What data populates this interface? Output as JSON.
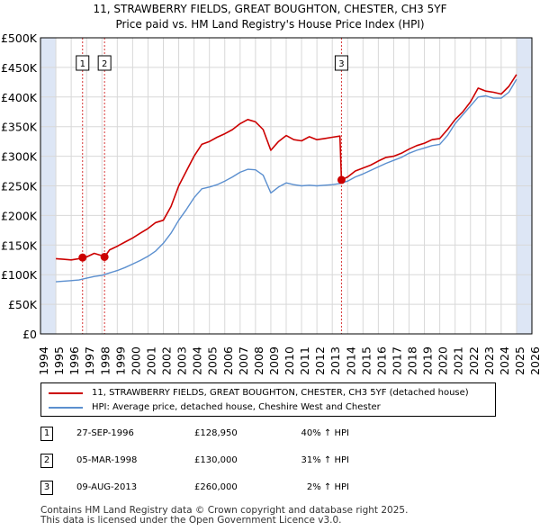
{
  "title_line1": "11, STRAWBERRY FIELDS, GREAT BOUGHTON, CHESTER, CH3 5YF",
  "title_line2": "Price paid vs. HM Land Registry's House Price Index (HPI)",
  "legend": {
    "property_label": "11, STRAWBERRY FIELDS, GREAT BOUGHTON, CHESTER, CH3 5YF (detached house)",
    "hpi_label": "HPI: Average price, detached house, Cheshire West and Chester"
  },
  "sales": [
    {
      "num": "1",
      "date": "27-SEP-1996",
      "price": "£128,950",
      "hpi": "40% ↑ HPI"
    },
    {
      "num": "2",
      "date": "05-MAR-1998",
      "price": "£130,000",
      "hpi": "31% ↑ HPI"
    },
    {
      "num": "3",
      "date": "09-AUG-2013",
      "price": "£260,000",
      "hpi": "2% ↑ HPI"
    }
  ],
  "footer_line1": "Contains HM Land Registry data © Crown copyright and database right 2025.",
  "footer_line2": "This data is licensed under the Open Government Licence v3.0.",
  "colors": {
    "property": "#cc0000",
    "hpi": "#5b8fcf",
    "shade": "#dde6f5",
    "grid": "#d8d8d8",
    "marker_line": "#cc0000"
  },
  "chart_data": {
    "type": "line",
    "xlim": [
      1994,
      2026
    ],
    "ylim": [
      0,
      500000
    ],
    "yticks": [
      0,
      50000,
      100000,
      150000,
      200000,
      250000,
      300000,
      350000,
      400000,
      450000,
      500000
    ],
    "ytick_labels": [
      "£0",
      "£50K",
      "£100K",
      "£150K",
      "£200K",
      "£250K",
      "£300K",
      "£350K",
      "£400K",
      "£450K",
      "£500K"
    ],
    "xticks": [
      1994,
      1995,
      1996,
      1997,
      1998,
      1999,
      2000,
      2001,
      2002,
      2003,
      2004,
      2005,
      2006,
      2007,
      2008,
      2009,
      2010,
      2011,
      2012,
      2013,
      2014,
      2015,
      2016,
      2017,
      2018,
      2019,
      2020,
      2021,
      2022,
      2023,
      2024,
      2025,
      2026
    ],
    "xtick_labels": [
      "1994",
      "1995",
      "1996",
      "1997",
      "1998",
      "1999",
      "2000",
      "2001",
      "2002",
      "2003",
      "2004",
      "2005",
      "2006",
      "2007",
      "2008",
      "2009",
      "2010",
      "2011",
      "2012",
      "2013",
      "2014",
      "2015",
      "2016",
      "2017",
      "2018",
      "2019",
      "2020",
      "2021",
      "2022",
      "2023",
      "2024",
      "2025",
      "2026"
    ],
    "shaded_periods": [
      [
        1994,
        1995
      ],
      [
        2025,
        2026
      ]
    ],
    "sale_markers": [
      {
        "label": "1",
        "x": 1996.74,
        "y": 128950
      },
      {
        "label": "2",
        "x": 1998.17,
        "y": 130000
      },
      {
        "label": "3",
        "x": 2013.6,
        "y": 260000
      }
    ],
    "series": [
      {
        "name": "11, STRAWBERRY FIELDS, GREAT BOUGHTON, CHESTER, CH3 5YF (detached house)",
        "x": [
          1995.0,
          1995.5,
          1996.0,
          1996.5,
          1996.74,
          1997.0,
          1997.5,
          1998.0,
          1998.17,
          1998.5,
          1999.0,
          1999.5,
          2000.0,
          2000.5,
          2001.0,
          2001.5,
          2002.0,
          2002.5,
          2003.0,
          2003.5,
          2004.0,
          2004.5,
          2005.0,
          2005.5,
          2006.0,
          2006.5,
          2007.0,
          2007.5,
          2008.0,
          2008.5,
          2009.0,
          2009.5,
          2010.0,
          2010.5,
          2011.0,
          2011.5,
          2012.0,
          2012.5,
          2013.0,
          2013.5,
          2013.6,
          2014.0,
          2014.5,
          2015.0,
          2015.5,
          2016.0,
          2016.5,
          2017.0,
          2017.5,
          2018.0,
          2018.5,
          2019.0,
          2019.5,
          2020.0,
          2020.5,
          2021.0,
          2021.5,
          2022.0,
          2022.5,
          2023.0,
          2023.5,
          2024.0,
          2024.5,
          2025.0
        ],
        "y": [
          127000,
          126000,
          125000,
          127000,
          128950,
          130000,
          136000,
          132000,
          130000,
          142000,
          148000,
          155000,
          162000,
          170000,
          178000,
          188000,
          192000,
          215000,
          250000,
          275000,
          300000,
          320000,
          325000,
          332000,
          338000,
          345000,
          355000,
          362000,
          358000,
          345000,
          310000,
          325000,
          335000,
          328000,
          326000,
          333000,
          328000,
          330000,
          332000,
          334000,
          260000,
          265000,
          275000,
          280000,
          285000,
          292000,
          298000,
          300000,
          305000,
          312000,
          318000,
          322000,
          328000,
          330000,
          345000,
          362000,
          375000,
          392000,
          415000,
          410000,
          408000,
          405000,
          418000,
          438000
        ]
      },
      {
        "name": "HPI: Average price, detached house, Cheshire West and Chester",
        "x": [
          1995.0,
          1995.5,
          1996.0,
          1996.5,
          1997.0,
          1997.5,
          1998.0,
          1998.5,
          1999.0,
          1999.5,
          2000.0,
          2000.5,
          2001.0,
          2001.5,
          2002.0,
          2002.5,
          2003.0,
          2003.5,
          2004.0,
          2004.5,
          2005.0,
          2005.5,
          2006.0,
          2006.5,
          2007.0,
          2007.5,
          2008.0,
          2008.5,
          2009.0,
          2009.5,
          2010.0,
          2010.5,
          2011.0,
          2011.5,
          2012.0,
          2012.5,
          2013.0,
          2013.5,
          2014.0,
          2014.5,
          2015.0,
          2015.5,
          2016.0,
          2016.5,
          2017.0,
          2017.5,
          2018.0,
          2018.5,
          2019.0,
          2019.5,
          2020.0,
          2020.5,
          2021.0,
          2021.5,
          2022.0,
          2022.5,
          2023.0,
          2023.5,
          2024.0,
          2024.5,
          2025.0
        ],
        "y": [
          88000,
          89000,
          90000,
          91000,
          94000,
          97000,
          99000,
          103000,
          107000,
          112000,
          118000,
          124000,
          131000,
          140000,
          153000,
          170000,
          192000,
          210000,
          230000,
          245000,
          248000,
          252000,
          258000,
          265000,
          273000,
          278000,
          277000,
          268000,
          238000,
          248000,
          255000,
          252000,
          250000,
          251000,
          250000,
          251000,
          252000,
          254000,
          258000,
          265000,
          270000,
          276000,
          282000,
          288000,
          293000,
          298000,
          305000,
          310000,
          314000,
          318000,
          320000,
          335000,
          355000,
          370000,
          385000,
          400000,
          402000,
          398000,
          398000,
          408000,
          430000
        ]
      }
    ]
  }
}
